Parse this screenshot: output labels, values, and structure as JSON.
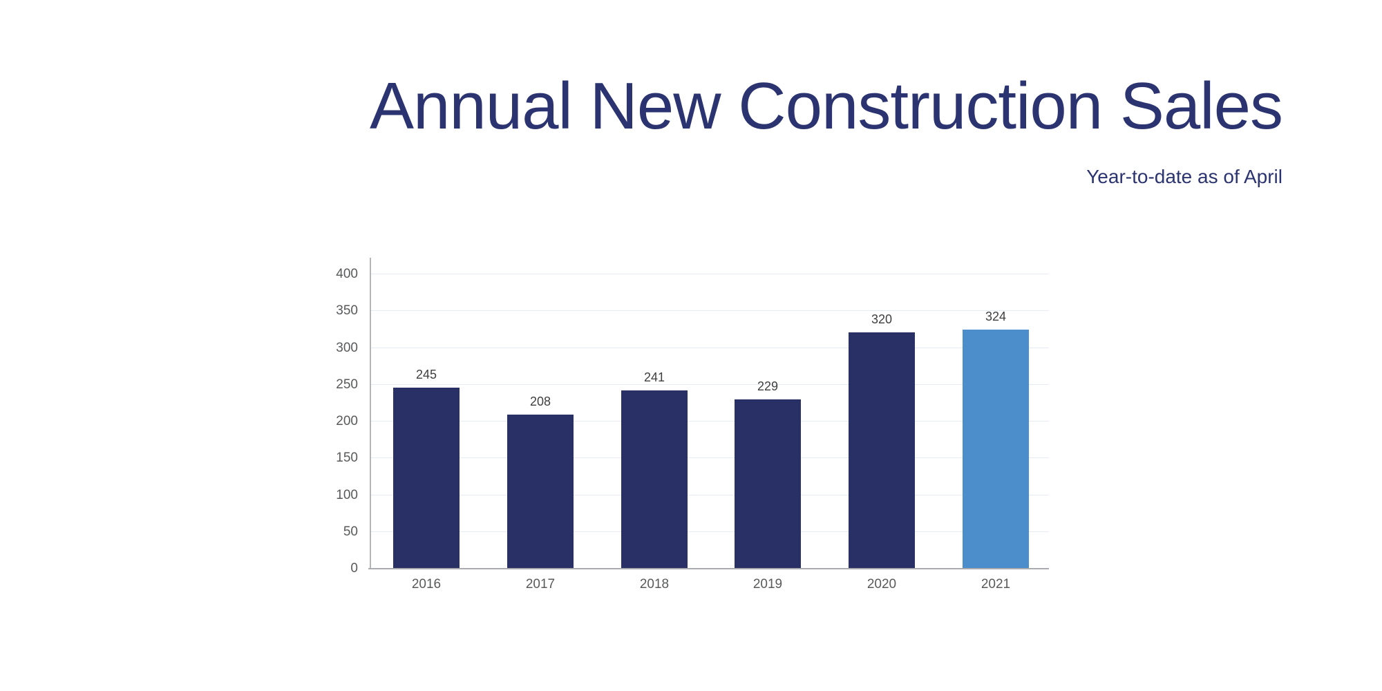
{
  "header": {
    "title": "Annual New Construction Sales",
    "subtitle": "Year-to-date as of April"
  },
  "colors": {
    "title": "#2b3470",
    "bar_default": "#283066",
    "bar_highlight": "#4c8ecb",
    "gridline": "#e6eaf2",
    "axis_line": "#b3b5b8",
    "baseline": "#a9abae",
    "tick_label": "#58595b",
    "value_label": "#3e3e3e"
  },
  "chart_data": {
    "type": "bar",
    "title": "Annual New Construction Sales",
    "subtitle": "Year-to-date as of April",
    "categories": [
      "2016",
      "2017",
      "2018",
      "2019",
      "2020",
      "2021"
    ],
    "values": [
      245,
      208,
      241,
      229,
      320,
      324
    ],
    "data_labels": [
      "245",
      "208",
      "241",
      "229",
      "320",
      "324"
    ],
    "highlight_category": "2021",
    "xlabel": "",
    "ylabel": "",
    "ylim": [
      0,
      400
    ],
    "yticks": [
      0,
      50,
      100,
      150,
      200,
      250,
      300,
      350,
      400
    ],
    "grid": true,
    "legend": false
  }
}
